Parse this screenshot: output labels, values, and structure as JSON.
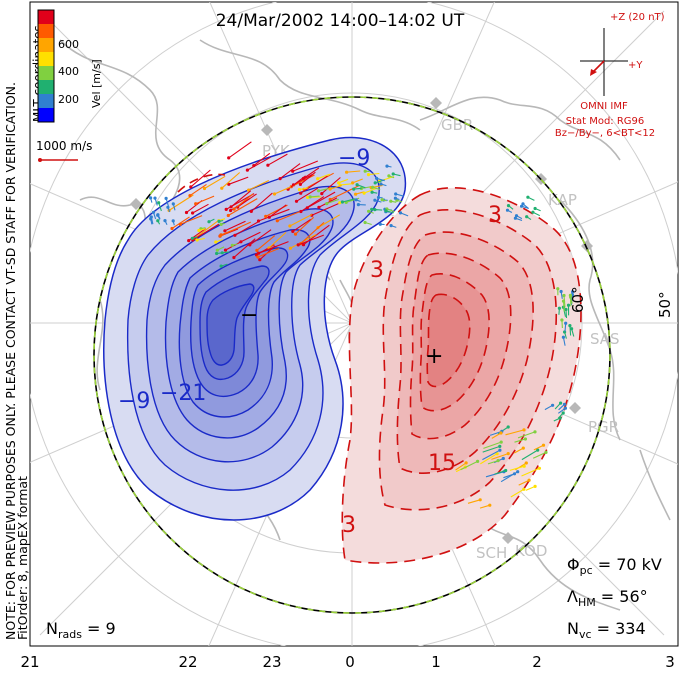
{
  "title": "24/Mar/2002  14:00–14:02  UT",
  "coordinates_label": "MLT coordinates",
  "preview_note": "NOTE: FOR PREVIEW PURPOSES ONLY. PLEASE CONTACT VT-SD STAFF FOR VERIFICATION.",
  "fit_note": "FitOrder: 8, mapEX format",
  "velocity_scale": {
    "title": "Vel [m/s]",
    "ticks": [
      "600",
      "400",
      "200"
    ],
    "colors": [
      "#e0001a",
      "#ff5a00",
      "#ffa500",
      "#ffe000",
      "#80d040",
      "#20b070",
      "#3080d0",
      "#0000ff"
    ]
  },
  "reference_vector": "1000 m/s",
  "imf": {
    "z_label": "+Z (20 nT)",
    "y_label": "+Y",
    "source": "OMNI IMF",
    "model": "Stat Mod: RG96",
    "condition": "Bz−/By−, 6<BT<12"
  },
  "latitude_labels": [
    "60°",
    "50°"
  ],
  "radar_labels": [
    "GBR",
    "KAP",
    "SAS",
    "PGR",
    "KOD",
    "PYK",
    "SCH"
  ],
  "contours": {
    "negative_labels": [
      "−9",
      "−21",
      "−9"
    ],
    "positive_labels": [
      "3",
      "3",
      "15",
      "3"
    ],
    "extrema_symbols": [
      "−",
      "+"
    ],
    "negative_color": "#1a2ac8",
    "positive_color": "#d01010"
  },
  "stats": {
    "nrads": "9",
    "phi_pc": "70 kV",
    "lambda_hm": "56°",
    "nvc": "334"
  },
  "mlt_axis": [
    "21",
    "22",
    "23",
    "0",
    "1",
    "2",
    "3"
  ],
  "chart_data": {
    "type": "map",
    "title": "24/Mar/2002  14:00–14:02  UT",
    "cross_polar_cap_potential_kV": 70,
    "heppner_maynard_boundary_lat_deg": 56,
    "n_radars": 9,
    "n_vectors": 334,
    "velocity_range_m_s": [
      0,
      700
    ],
    "mlt_ticks": [
      21,
      22,
      23,
      0,
      1,
      2,
      3
    ]
  }
}
